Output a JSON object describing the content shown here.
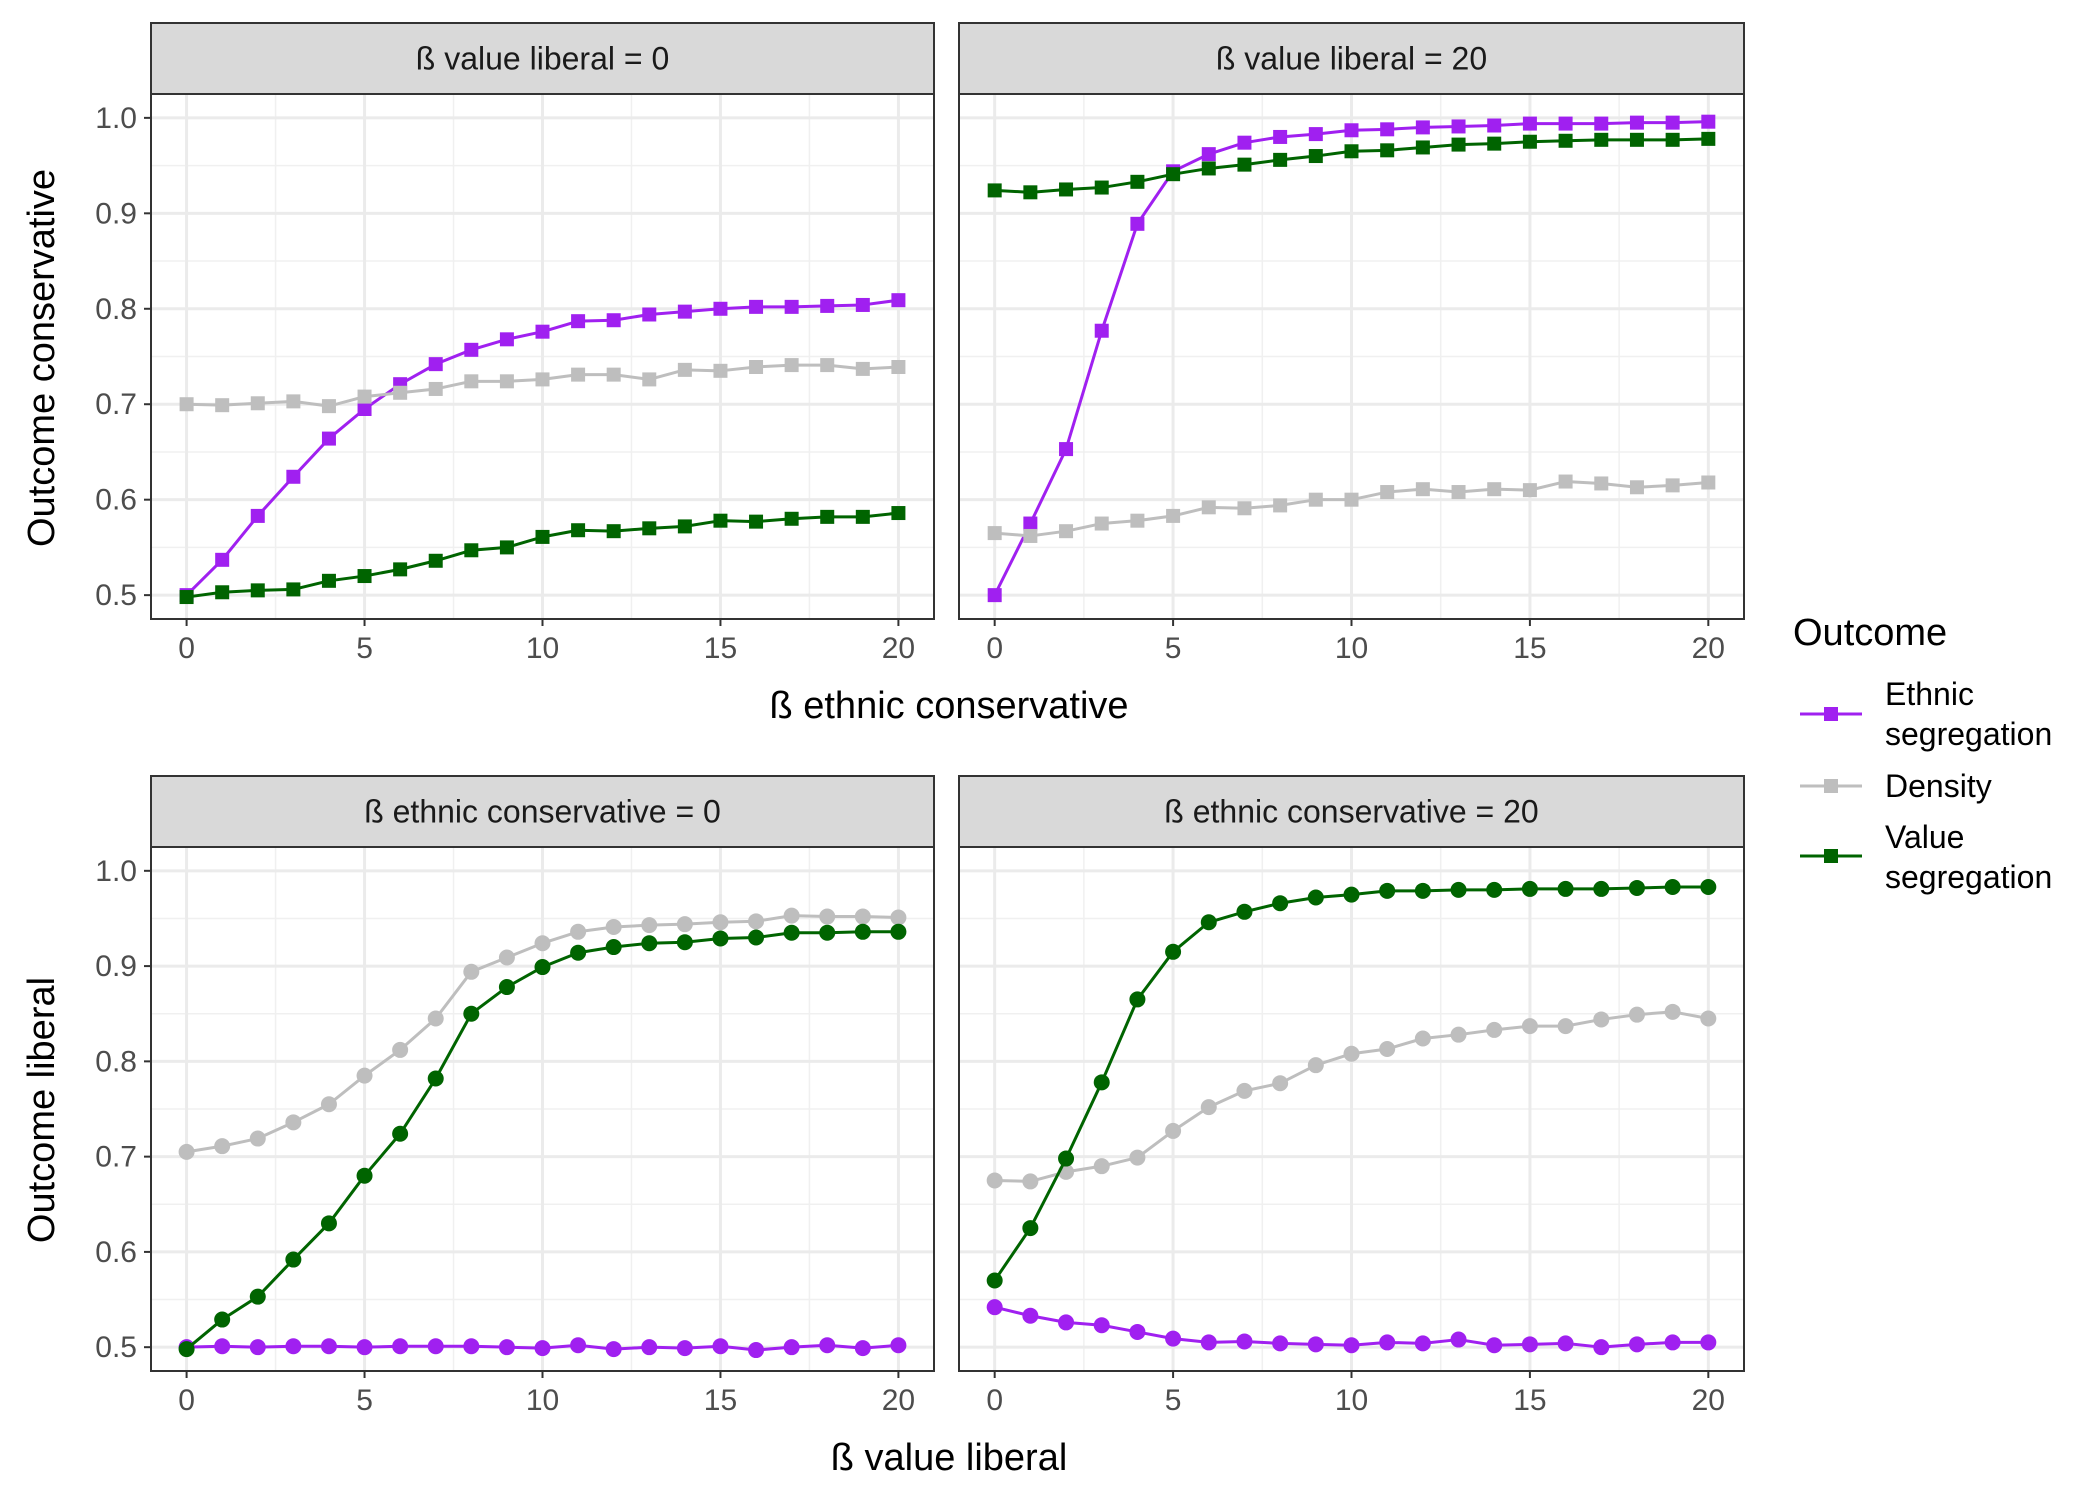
{
  "legend": {
    "title": "Outcome",
    "items": [
      {
        "lines": [
          "Ethnic",
          "segregation"
        ],
        "color": "#A020F0"
      },
      {
        "lines": [
          "Density"
        ],
        "color": "#BEBEBE"
      },
      {
        "lines": [
          "Value",
          "segregation"
        ],
        "color": "#006400"
      }
    ]
  },
  "chart_data": [
    {
      "type": "line",
      "marker": "square",
      "title": "ß value liberal = 0",
      "xlabel": "ß ethnic conservative",
      "ylabel": "Outcome conservative",
      "xlim": [
        0,
        20
      ],
      "ylim": [
        0.5,
        1.0
      ],
      "xticks": [
        0,
        5,
        10,
        15,
        20
      ],
      "yticks": [
        0.5,
        0.6,
        0.7,
        0.8,
        0.9,
        1.0
      ],
      "ytick_labels": [
        "0.5",
        "0.6",
        "0.7",
        "0.8",
        "0.9",
        "1.0"
      ],
      "x": [
        0,
        1,
        2,
        3,
        4,
        5,
        6,
        7,
        8,
        9,
        10,
        11,
        12,
        13,
        14,
        15,
        16,
        17,
        18,
        19,
        20
      ],
      "series": [
        {
          "name": "Ethnic segregation",
          "color": "#A020F0",
          "values": [
            0.5,
            0.537,
            0.583,
            0.624,
            0.664,
            0.695,
            0.721,
            0.742,
            0.757,
            0.768,
            0.776,
            0.787,
            0.788,
            0.794,
            0.797,
            0.8,
            0.802,
            0.802,
            0.803,
            0.804,
            0.809
          ]
        },
        {
          "name": "Density",
          "color": "#BEBEBE",
          "values": [
            0.7,
            0.699,
            0.701,
            0.703,
            0.698,
            0.708,
            0.712,
            0.716,
            0.724,
            0.724,
            0.726,
            0.731,
            0.731,
            0.726,
            0.736,
            0.735,
            0.739,
            0.741,
            0.741,
            0.737,
            0.739
          ]
        },
        {
          "name": "Value segregation",
          "color": "#006400",
          "values": [
            0.498,
            0.503,
            0.505,
            0.506,
            0.515,
            0.52,
            0.527,
            0.536,
            0.547,
            0.55,
            0.561,
            0.568,
            0.567,
            0.57,
            0.572,
            0.578,
            0.577,
            0.58,
            0.582,
            0.582,
            0.586
          ]
        }
      ]
    },
    {
      "type": "line",
      "marker": "square",
      "title": "ß value liberal = 20",
      "xlabel": "ß ethnic conservative",
      "ylabel": "Outcome conservative",
      "xlim": [
        0,
        20
      ],
      "ylim": [
        0.5,
        1.0
      ],
      "xticks": [
        0,
        5,
        10,
        15,
        20
      ],
      "yticks": [
        0.5,
        0.6,
        0.7,
        0.8,
        0.9,
        1.0
      ],
      "x": [
        0,
        1,
        2,
        3,
        4,
        5,
        6,
        7,
        8,
        9,
        10,
        11,
        12,
        13,
        14,
        15,
        16,
        17,
        18,
        19,
        20
      ],
      "series": [
        {
          "name": "Ethnic segregation",
          "color": "#A020F0",
          "values": [
            0.5,
            0.575,
            0.653,
            0.777,
            0.889,
            0.944,
            0.962,
            0.974,
            0.98,
            0.983,
            0.987,
            0.988,
            0.99,
            0.991,
            0.992,
            0.994,
            0.994,
            0.994,
            0.995,
            0.995,
            0.996
          ]
        },
        {
          "name": "Density",
          "color": "#BEBEBE",
          "values": [
            0.565,
            0.562,
            0.567,
            0.575,
            0.578,
            0.583,
            0.592,
            0.591,
            0.594,
            0.6,
            0.6,
            0.608,
            0.611,
            0.608,
            0.611,
            0.61,
            0.619,
            0.617,
            0.613,
            0.615,
            0.618
          ]
        },
        {
          "name": "Value segregation",
          "color": "#006400",
          "values": [
            0.924,
            0.922,
            0.925,
            0.927,
            0.933,
            0.941,
            0.947,
            0.951,
            0.956,
            0.96,
            0.965,
            0.966,
            0.969,
            0.972,
            0.973,
            0.975,
            0.976,
            0.977,
            0.977,
            0.977,
            0.978
          ]
        }
      ]
    },
    {
      "type": "line",
      "marker": "circle",
      "title": "ß ethnic conservative = 0",
      "xlabel": "ß value liberal",
      "ylabel": "Outcome liberal",
      "xlim": [
        0,
        20
      ],
      "ylim": [
        0.5,
        1.0
      ],
      "xticks": [
        0,
        5,
        10,
        15,
        20
      ],
      "yticks": [
        0.5,
        0.6,
        0.7,
        0.8,
        0.9,
        1.0
      ],
      "ytick_labels": [
        "0.5",
        "0.6",
        "0.7",
        "0.8",
        "0.9",
        "1.0"
      ],
      "x": [
        0,
        1,
        2,
        3,
        4,
        5,
        6,
        7,
        8,
        9,
        10,
        11,
        12,
        13,
        14,
        15,
        16,
        17,
        18,
        19,
        20
      ],
      "series": [
        {
          "name": "Ethnic segregation",
          "color": "#A020F0",
          "values": [
            0.5,
            0.501,
            0.5,
            0.501,
            0.501,
            0.5,
            0.501,
            0.501,
            0.501,
            0.5,
            0.499,
            0.502,
            0.498,
            0.5,
            0.499,
            0.501,
            0.497,
            0.5,
            0.502,
            0.499,
            0.502
          ]
        },
        {
          "name": "Density",
          "color": "#BEBEBE",
          "values": [
            0.705,
            0.711,
            0.719,
            0.736,
            0.755,
            0.785,
            0.812,
            0.845,
            0.894,
            0.909,
            0.924,
            0.936,
            0.941,
            0.943,
            0.944,
            0.946,
            0.947,
            0.953,
            0.952,
            0.952,
            0.951
          ]
        },
        {
          "name": "Value segregation",
          "color": "#006400",
          "values": [
            0.498,
            0.529,
            0.553,
            0.592,
            0.63,
            0.68,
            0.724,
            0.782,
            0.85,
            0.878,
            0.899,
            0.914,
            0.92,
            0.924,
            0.925,
            0.929,
            0.93,
            0.935,
            0.935,
            0.936,
            0.936
          ]
        }
      ]
    },
    {
      "type": "line",
      "marker": "circle",
      "title": "ß ethnic conservative = 20",
      "xlabel": "ß value liberal",
      "ylabel": "Outcome liberal",
      "xlim": [
        0,
        20
      ],
      "ylim": [
        0.5,
        1.0
      ],
      "xticks": [
        0,
        5,
        10,
        15,
        20
      ],
      "yticks": [
        0.5,
        0.6,
        0.7,
        0.8,
        0.9,
        1.0
      ],
      "x": [
        0,
        1,
        2,
        3,
        4,
        5,
        6,
        7,
        8,
        9,
        10,
        11,
        12,
        13,
        14,
        15,
        16,
        17,
        18,
        19,
        20
      ],
      "series": [
        {
          "name": "Ethnic segregation",
          "color": "#A020F0",
          "values": [
            0.542,
            0.533,
            0.526,
            0.523,
            0.516,
            0.509,
            0.505,
            0.506,
            0.504,
            0.503,
            0.502,
            0.505,
            0.504,
            0.508,
            0.502,
            0.503,
            0.504,
            0.5,
            0.503,
            0.505,
            0.505
          ]
        },
        {
          "name": "Density",
          "color": "#BEBEBE",
          "values": [
            0.675,
            0.674,
            0.684,
            0.69,
            0.699,
            0.727,
            0.752,
            0.769,
            0.777,
            0.796,
            0.808,
            0.813,
            0.824,
            0.828,
            0.833,
            0.837,
            0.837,
            0.844,
            0.849,
            0.852,
            0.845
          ]
        },
        {
          "name": "Value segregation",
          "color": "#006400",
          "values": [
            0.57,
            0.625,
            0.698,
            0.778,
            0.865,
            0.915,
            0.946,
            0.957,
            0.966,
            0.972,
            0.975,
            0.979,
            0.979,
            0.98,
            0.98,
            0.981,
            0.981,
            0.981,
            0.982,
            0.983,
            0.983
          ]
        }
      ]
    }
  ]
}
